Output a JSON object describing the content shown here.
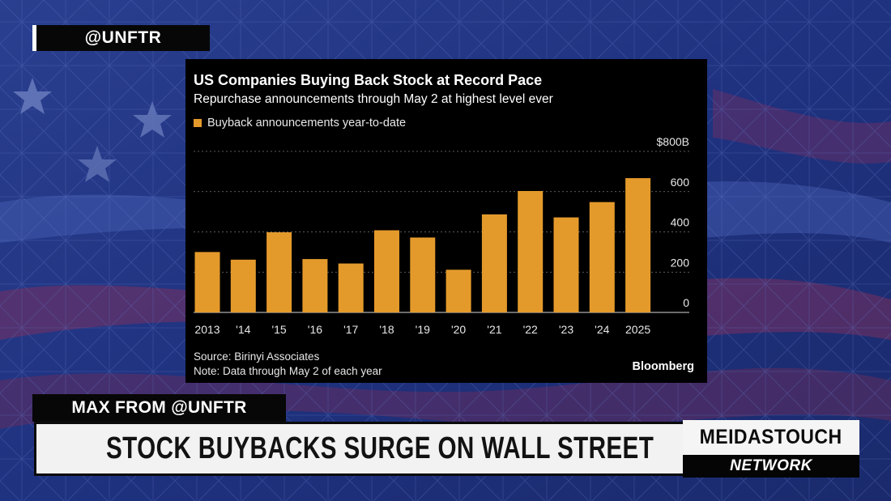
{
  "handle": "@UNFTR",
  "chart_data": {
    "type": "bar",
    "title": "US Companies Buying Back Stock at Record Pace",
    "subtitle": "Repurchase announcements through May 2 at highest level ever",
    "legend": [
      "Buyback announcements year-to-date"
    ],
    "categories": [
      "2013",
      "'14",
      "'15",
      "'16",
      "'17",
      "'18",
      "'19",
      "'20",
      "'21",
      "'22",
      "'23",
      "'24",
      "2025"
    ],
    "values": [
      300,
      262,
      398,
      265,
      243,
      408,
      372,
      212,
      487,
      603,
      472,
      548,
      667
    ],
    "ylim": [
      0,
      800
    ],
    "yticks": [
      0,
      200,
      400,
      600,
      800
    ],
    "ytick_labels": [
      "0",
      "200",
      "400",
      "600",
      "$800B"
    ],
    "bar_color": "#e49a2b",
    "source": "Source: Birinyi Associates",
    "note": "Note: Data through May 2 of each year",
    "brand": "Bloomberg"
  },
  "lower_third": {
    "name_tag": "MAX FROM @UNFTR",
    "headline": "STOCK BUYBACKS SURGE ON WALL STREET",
    "logo_main": "MEIDASTOUCH",
    "logo_sub": "NETWORK"
  }
}
